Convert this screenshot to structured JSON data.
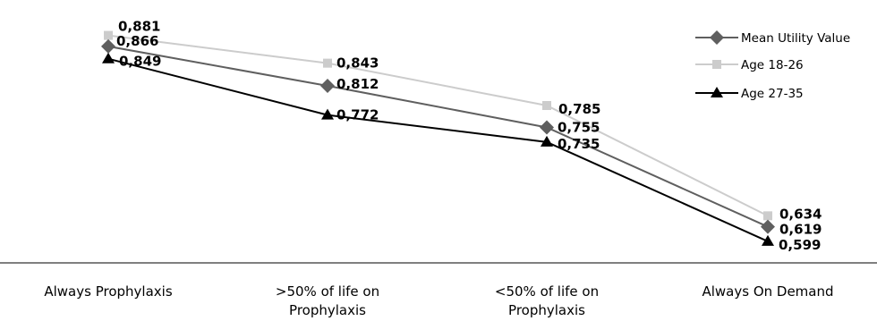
{
  "chart_data": {
    "type": "line",
    "categories": [
      [
        "Always Prophylaxis"
      ],
      [
        ">50% of life on",
        "Prophylaxis"
      ],
      [
        "<50% of life on",
        "Prophylaxis"
      ],
      [
        "Always On Demand"
      ]
    ],
    "series": [
      {
        "name": "Mean Utility Value",
        "values": [
          0.866,
          0.812,
          0.755,
          0.619
        ],
        "labels": [
          "0,866",
          "0,812",
          "0,755",
          "0,619"
        ],
        "color": "#5f5f5f",
        "marker": "diamond"
      },
      {
        "name": "Age 18-26",
        "values": [
          0.881,
          0.843,
          0.785,
          0.634
        ],
        "labels": [
          "0,881",
          "0,843",
          "0,785",
          "0,634"
        ],
        "color": "#cccccc",
        "marker": "square"
      },
      {
        "name": "Age 27-35",
        "values": [
          0.849,
          0.772,
          0.735,
          0.599
        ],
        "labels": [
          "0,849",
          "0,772",
          "0,735",
          "0,599"
        ],
        "color": "#000000",
        "marker": "triangle"
      }
    ],
    "ylim": [
      0.583,
      0.905
    ],
    "grid": false,
    "legend": "top-right",
    "title": "",
    "xlabel": "",
    "ylabel": ""
  }
}
